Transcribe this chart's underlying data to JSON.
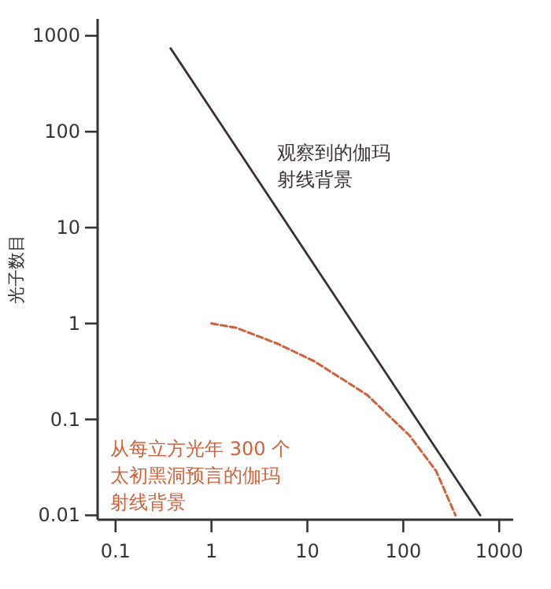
{
  "chart_data": {
    "type": "line",
    "ylabel": "光子数目",
    "log": "xy",
    "xlim": [
      0.065,
      1400
    ],
    "ylim": [
      0.009,
      1500
    ],
    "xticks": [
      0.1,
      1,
      10,
      100,
      1000
    ],
    "yticks": [
      0.01,
      0.1,
      1,
      10,
      100,
      1000
    ],
    "series": [
      {
        "name": "观察到的伽玛射线背景",
        "color": "#3a3032",
        "line_style": "solid",
        "x": [
          0.375,
          635
        ],
        "values": [
          740,
          0.01
        ]
      },
      {
        "name": "从每立方光年 300 个太初黑洞预言的伽玛射线背景",
        "color": "#d0603a",
        "line_style": "dashed",
        "x": [
          1,
          1.83,
          5,
          12,
          42,
          116,
          220,
          350
        ],
        "values": [
          1,
          0.9,
          0.61,
          0.4,
          0.18,
          0.068,
          0.029,
          0.01
        ]
      }
    ]
  }
}
